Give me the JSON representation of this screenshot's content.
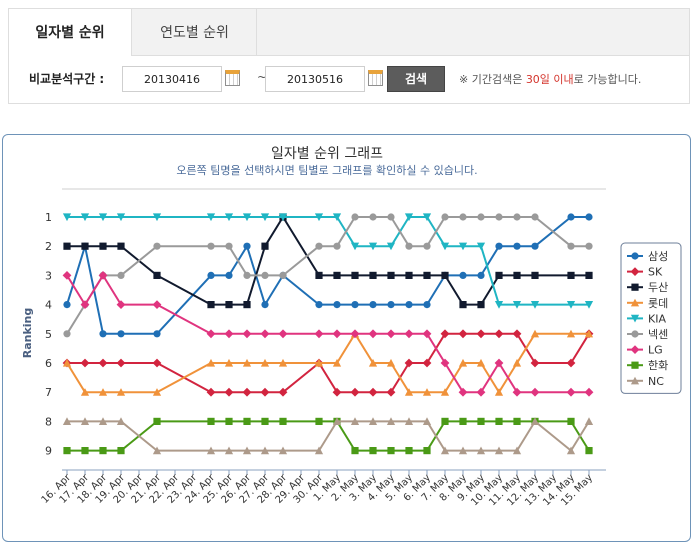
{
  "tabs": [
    {
      "label": "일자별 순위",
      "active": true
    },
    {
      "label": "연도별 순위",
      "active": false
    }
  ],
  "filter": {
    "label": "비교분석구간 :",
    "start_date": "20130416",
    "tilde": "~",
    "end_date": "20130516",
    "search_label": "검색",
    "notice_pre": "※ 기간검색은 ",
    "notice_highlight": "30일 이내",
    "notice_post": "로 가능합니다."
  },
  "chart_data": {
    "type": "line",
    "title": "일자별 순위 그래프",
    "subtitle": "오른쪽 팀명을 선택하시면 팀별로 그래프를 확인하실 수 있습니다.",
    "ylabel": "Ranking",
    "xlabel": "",
    "ylim": [
      1,
      9
    ],
    "y_inverted": true,
    "y_ticks": [
      "1",
      "2",
      "3",
      "4",
      "5",
      "6",
      "7",
      "8",
      "9"
    ],
    "legend_position": "right",
    "categories": [
      "16. Apr",
      "17. Apr",
      "18. Apr",
      "19. Apr",
      "20. Apr",
      "21. Apr",
      "22. Apr",
      "23. Apr",
      "24. Apr",
      "25. Apr",
      "26. Apr",
      "27. Apr",
      "28. Apr",
      "29. Apr",
      "30. Apr",
      "1. May",
      "2. May",
      "3. May",
      "4. May",
      "5. May",
      "6. May",
      "7. May",
      "8. May",
      "9. May",
      "10. May",
      "11. May",
      "12. May",
      "13. May",
      "14. May",
      "15. May"
    ],
    "series": [
      {
        "name": "삼성",
        "color": "#1f6fb5",
        "marker": "circle",
        "values": [
          4,
          2,
          5,
          5,
          null,
          5,
          null,
          null,
          3,
          3,
          2,
          4,
          3,
          null,
          4,
          4,
          4,
          4,
          4,
          4,
          4,
          3,
          3,
          3,
          2,
          2,
          2,
          null,
          1,
          1
        ]
      },
      {
        "name": "SK",
        "color": "#d2243f",
        "marker": "diamond",
        "values": [
          6,
          6,
          6,
          6,
          null,
          6,
          null,
          null,
          7,
          7,
          7,
          7,
          7,
          null,
          6,
          7,
          7,
          7,
          7,
          6,
          6,
          5,
          5,
          5,
          5,
          5,
          6,
          null,
          6,
          5
        ]
      },
      {
        "name": "두산",
        "color": "#111a2e",
        "marker": "square",
        "values": [
          2,
          2,
          2,
          2,
          null,
          3,
          null,
          null,
          4,
          4,
          4,
          2,
          1,
          null,
          3,
          3,
          3,
          3,
          3,
          3,
          3,
          3,
          4,
          4,
          3,
          3,
          3,
          null,
          3,
          3
        ]
      },
      {
        "name": "롯데",
        "color": "#f0923a",
        "marker": "triangle",
        "values": [
          6,
          7,
          7,
          7,
          null,
          7,
          null,
          null,
          6,
          6,
          6,
          6,
          6,
          null,
          6,
          6,
          5,
          6,
          6,
          7,
          7,
          7,
          6,
          6,
          7,
          6,
          5,
          null,
          5,
          5
        ]
      },
      {
        "name": "KIA",
        "color": "#1fb5c3",
        "marker": "triangle-down",
        "values": [
          1,
          1,
          1,
          1,
          null,
          1,
          null,
          null,
          1,
          1,
          1,
          1,
          1,
          null,
          1,
          1,
          2,
          2,
          2,
          1,
          1,
          2,
          2,
          2,
          4,
          4,
          4,
          null,
          4,
          4
        ]
      },
      {
        "name": "넥센",
        "color": "#9a9a9a",
        "marker": "circle",
        "values": [
          5,
          4,
          3,
          3,
          null,
          2,
          null,
          null,
          2,
          2,
          3,
          3,
          3,
          null,
          2,
          2,
          1,
          1,
          1,
          2,
          2,
          1,
          1,
          1,
          1,
          1,
          1,
          null,
          2,
          2
        ]
      },
      {
        "name": "LG",
        "color": "#e0347f",
        "marker": "diamond",
        "values": [
          3,
          4,
          3,
          4,
          null,
          4,
          null,
          null,
          5,
          5,
          5,
          5,
          5,
          null,
          5,
          5,
          5,
          5,
          5,
          5,
          5,
          6,
          7,
          7,
          6,
          7,
          7,
          null,
          7,
          7
        ]
      },
      {
        "name": "한화",
        "color": "#4a9a16",
        "marker": "square",
        "values": [
          9,
          9,
          9,
          9,
          null,
          8,
          null,
          null,
          8,
          8,
          8,
          8,
          8,
          null,
          8,
          8,
          9,
          9,
          9,
          9,
          9,
          8,
          8,
          8,
          8,
          8,
          8,
          null,
          8,
          9
        ]
      },
      {
        "name": "NC",
        "color": "#ad9a8a",
        "marker": "triangle",
        "values": [
          8,
          8,
          8,
          8,
          null,
          9,
          null,
          null,
          9,
          9,
          9,
          9,
          9,
          null,
          9,
          8,
          8,
          8,
          8,
          8,
          8,
          9,
          9,
          9,
          9,
          9,
          8,
          null,
          9,
          8
        ]
      }
    ]
  }
}
